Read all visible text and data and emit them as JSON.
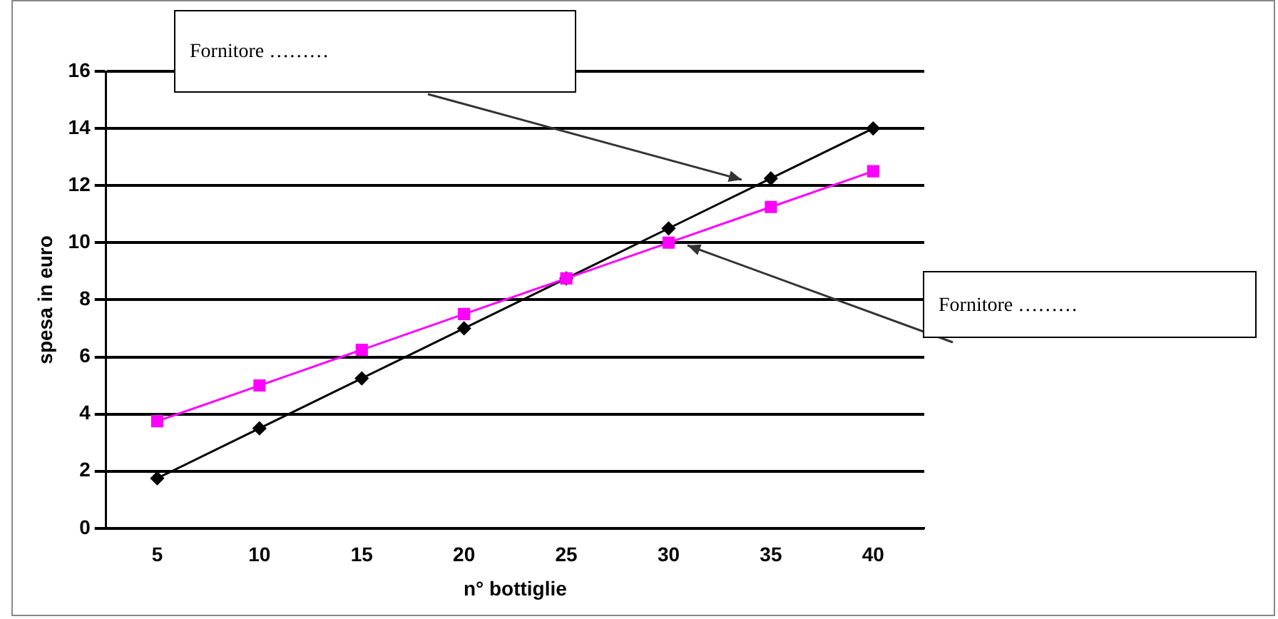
{
  "chart_data": {
    "type": "line",
    "xlabel": "n° bottiglie",
    "ylabel": "spesa in euro",
    "categories": [
      "5",
      "10",
      "15",
      "20",
      "25",
      "30",
      "35",
      "40"
    ],
    "series": [
      {
        "color": "#000000",
        "marker": "diamond",
        "values": [
          1.75,
          3.5,
          5.25,
          7,
          8.75,
          10.5,
          12.25,
          14
        ]
      },
      {
        "color": "#ff00ff",
        "marker": "square",
        "values": [
          3.75,
          5,
          6.25,
          7.5,
          8.75,
          10,
          11.25,
          12.5
        ]
      }
    ],
    "ylim": [
      0,
      16
    ],
    "yticks": [
      0,
      2,
      4,
      6,
      8,
      10,
      12,
      14,
      16
    ],
    "grid": "y",
    "legend": false,
    "line_style": "solid",
    "annotations": [
      "Fornitore ………",
      "Fornitore ………"
    ]
  }
}
